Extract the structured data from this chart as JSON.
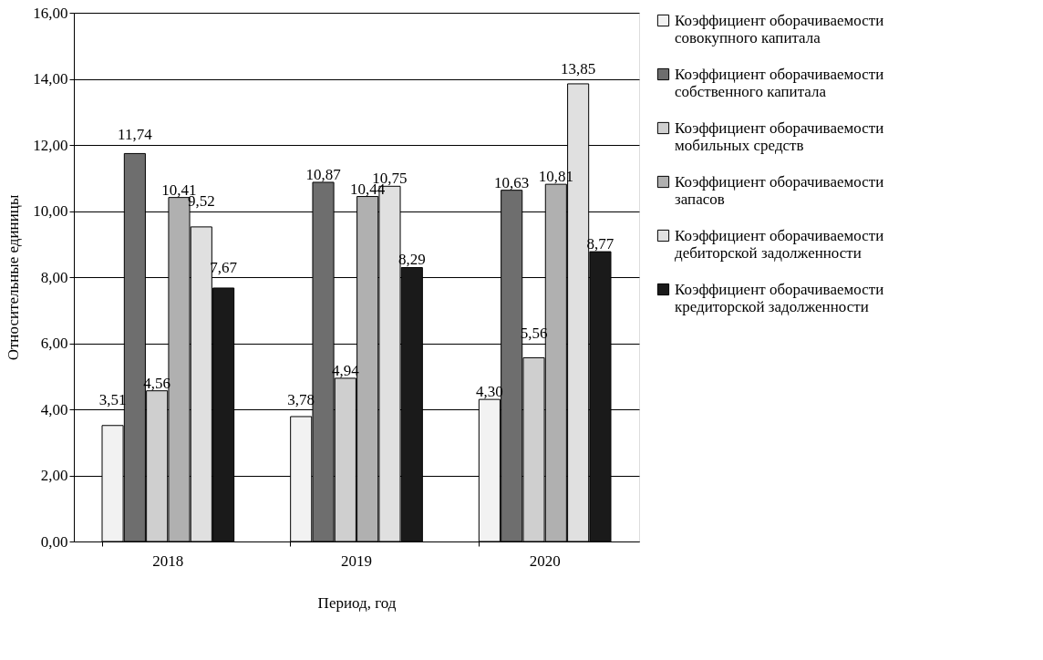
{
  "chart_data": {
    "type": "bar",
    "xlabel": "Период, год",
    "ylabel": "Относительные единицы",
    "categories": [
      "2018",
      "2019",
      "2020"
    ],
    "series": [
      {
        "name": "Коэффициент оборачиваемости совокупного капитала",
        "color": "#f2f2f2",
        "values": [
          3.51,
          3.78,
          4.3
        ],
        "value_labels": [
          "3,51",
          "3,78",
          "4,30"
        ]
      },
      {
        "name": "Коэффициент оборачиваемости собственного капитала",
        "color": "#6e6e6e",
        "values": [
          11.74,
          10.87,
          10.63
        ],
        "value_labels": [
          "11,74",
          "10,87",
          "10,63"
        ]
      },
      {
        "name": "Коэффициент оборачиваемости мобильных средств",
        "color": "#cfcfcf",
        "values": [
          4.56,
          4.94,
          5.56
        ],
        "value_labels": [
          "4,56",
          "4,94",
          "5,56"
        ]
      },
      {
        "name": "Коэффициент оборачиваемости запасов",
        "color": "#b0b0b0",
        "values": [
          10.41,
          10.44,
          10.81
        ],
        "value_labels": [
          "10,41",
          "10,44",
          "10,81"
        ]
      },
      {
        "name": "Коэффициент оборачиваемости дебиторской задолженности",
        "color": "#e0e0e0",
        "values": [
          9.52,
          10.75,
          13.85
        ],
        "value_labels": [
          "9,52",
          "10,75",
          "13,85"
        ]
      },
      {
        "name": "Коэффициент оборачиваемости кредиторской задолженности",
        "color": "#1a1a1a",
        "values": [
          7.67,
          8.29,
          8.77
        ],
        "value_labels": [
          "7,67",
          "8,29",
          "8,77"
        ]
      }
    ],
    "ylim": [
      0,
      16
    ],
    "yticks": [
      {
        "value": 0,
        "label": "0,00"
      },
      {
        "value": 2,
        "label": "2,00"
      },
      {
        "value": 4,
        "label": "4,00"
      },
      {
        "value": 6,
        "label": "6,00"
      },
      {
        "value": 8,
        "label": "8,00"
      },
      {
        "value": 10,
        "label": "10,00"
      },
      {
        "value": 12,
        "label": "12,00"
      },
      {
        "value": 14,
        "label": "14,00"
      },
      {
        "value": 16,
        "label": "16,00"
      }
    ],
    "grid": "y",
    "legend": "right"
  }
}
